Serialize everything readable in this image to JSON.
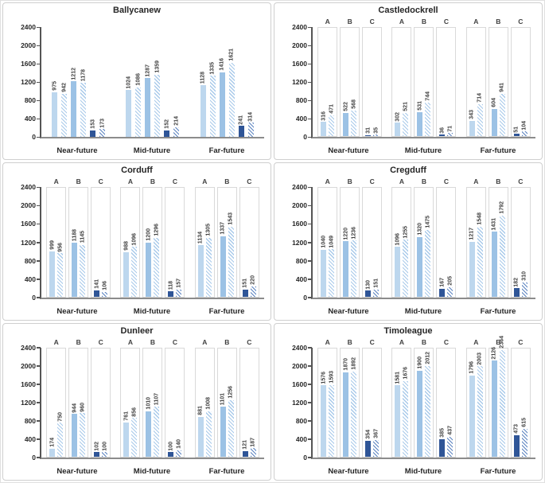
{
  "figure": {
    "background": "#ffffff",
    "panel_border": "#cfcfcf"
  },
  "style": {
    "colors": {
      "solid_A": "#BDD7EE",
      "solid_B": "#9CC2E5",
      "solid_C": "#2F5597",
      "hatch_stripe_light": "#A9CAEA",
      "hatch_stripe_dark": "#5B83C0",
      "axis_y": "#555555",
      "axis_x": "#8c8c8c",
      "box_border": "#d9d9d9",
      "title_text": "#262626",
      "value_text": "#3f3f3f"
    }
  },
  "chart_config": {
    "subgroups": [
      "A",
      "B",
      "C"
    ],
    "series_styles": [
      "solid",
      "hatched"
    ],
    "ylim": [
      0,
      2400
    ],
    "ytick_labels": [
      "0",
      "400",
      "800",
      "1200",
      "1600",
      "2000",
      "2400"
    ],
    "yticks": [
      0,
      400,
      800,
      1200,
      1600,
      2000,
      2400
    ],
    "categories": [
      "Near-future",
      "Mid-future",
      "Far-future"
    ],
    "legend": "none",
    "grid": "off"
  },
  "chart_data": [
    {
      "type": "bar",
      "title": "Ballycanew",
      "ylim": [
        0,
        2400
      ],
      "show_subgroup_boxes": false,
      "show_subgroup_labels": false,
      "groups": [
        {
          "label": "Near-future",
          "A": [
            975,
            942
          ],
          "B": [
            1212,
            1178
          ],
          "C": [
            153,
            173
          ]
        },
        {
          "label": "Mid-future",
          "A": [
            1024,
            1086
          ],
          "B": [
            1287,
            1359
          ],
          "C": [
            152,
            214
          ]
        },
        {
          "label": "Far-future",
          "A": [
            1128,
            1335
          ],
          "B": [
            1416,
            1621
          ],
          "C": [
            241,
            314
          ]
        }
      ]
    },
    {
      "type": "bar",
      "title": "Castledockrell",
      "ylim": [
        0,
        2400
      ],
      "show_subgroup_boxes": true,
      "show_subgroup_labels": true,
      "groups": [
        {
          "label": "Near-future",
          "A": [
            316,
            471
          ],
          "B": [
            522,
            568
          ],
          "C": [
            31,
            35
          ]
        },
        {
          "label": "Mid-future",
          "A": [
            302,
            521
          ],
          "B": [
            531,
            744
          ],
          "C": [
            36,
            71
          ]
        },
        {
          "label": "Far-future",
          "A": [
            343,
            714
          ],
          "B": [
            604,
            941
          ],
          "C": [
            51,
            104
          ]
        }
      ]
    },
    {
      "type": "bar",
      "title": "Corduff",
      "ylim": [
        0,
        2400
      ],
      "show_subgroup_boxes": true,
      "show_subgroup_labels": true,
      "groups": [
        {
          "label": "Near-future",
          "A": [
            999,
            956
          ],
          "B": [
            1188,
            1145
          ],
          "C": [
            141,
            106
          ]
        },
        {
          "label": "Mid-future",
          "A": [
            988,
            1096
          ],
          "B": [
            1200,
            1296
          ],
          "C": [
            118,
            157
          ]
        },
        {
          "label": "Far-future",
          "A": [
            1134,
            1305
          ],
          "B": [
            1337,
            1543
          ],
          "C": [
            151,
            220
          ]
        }
      ]
    },
    {
      "type": "bar",
      "title": "Cregduff",
      "ylim": [
        0,
        2400
      ],
      "show_subgroup_boxes": true,
      "show_subgroup_labels": true,
      "groups": [
        {
          "label": "Near-future",
          "A": [
            1040,
            1049
          ],
          "B": [
            1220,
            1236
          ],
          "C": [
            130,
            151
          ]
        },
        {
          "label": "Mid-future",
          "A": [
            1096,
            1255
          ],
          "B": [
            1320,
            1475
          ],
          "C": [
            167,
            205
          ]
        },
        {
          "label": "Far-future",
          "A": [
            1217,
            1548
          ],
          "B": [
            1431,
            1792
          ],
          "C": [
            182,
            310
          ]
        }
      ]
    },
    {
      "type": "bar",
      "title": "Dunleer",
      "ylim": [
        0,
        2400
      ],
      "show_subgroup_boxes": true,
      "show_subgroup_labels": true,
      "groups": [
        {
          "label": "Near-future",
          "A": [
            174,
            750
          ],
          "B": [
            944,
            960
          ],
          "C": [
            102,
            100
          ]
        },
        {
          "label": "Mid-future",
          "A": [
            761,
            856
          ],
          "B": [
            1010,
            1107
          ],
          "C": [
            100,
            140
          ]
        },
        {
          "label": "Far-future",
          "A": [
            881,
            1008
          ],
          "B": [
            1101,
            1256
          ],
          "C": [
            121,
            187
          ]
        }
      ]
    },
    {
      "type": "bar",
      "title": "Timoleague",
      "ylim": [
        0,
        2400
      ],
      "show_subgroup_boxes": true,
      "show_subgroup_labels": true,
      "groups": [
        {
          "label": "Near-future",
          "A": [
            1576,
            1593
          ],
          "B": [
            1870,
            1892
          ],
          "C": [
            354,
            367
          ]
        },
        {
          "label": "Mid-future",
          "A": [
            1581,
            1676
          ],
          "B": [
            1900,
            2012
          ],
          "C": [
            385,
            437
          ]
        },
        {
          "label": "Far-future",
          "A": [
            1796,
            2003
          ],
          "B": [
            2126,
            2364
          ],
          "C": [
            473,
            615
          ]
        }
      ]
    }
  ]
}
